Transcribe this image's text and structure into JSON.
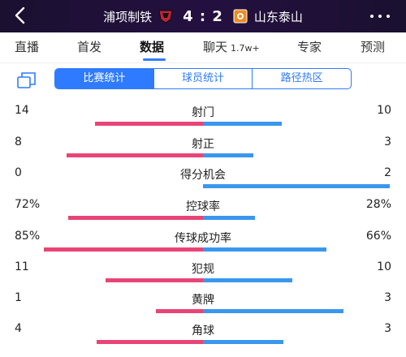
{
  "header": {
    "home_team": "浦项制铁",
    "away_team": "山东泰山",
    "score": "4 : 2"
  },
  "tabs": [
    {
      "label": "直播"
    },
    {
      "label": "首发"
    },
    {
      "label": "数据",
      "active": true
    },
    {
      "label": "聊天",
      "sub": "1.7w+"
    },
    {
      "label": "专家"
    },
    {
      "label": "预测"
    }
  ],
  "segment": [
    {
      "label": "比赛统计",
      "active": true
    },
    {
      "label": "球员统计"
    },
    {
      "label": "路径热区"
    }
  ],
  "colors": {
    "home": "#e84576",
    "away": "#3a97ee",
    "accent": "#2f7bff"
  },
  "stats": [
    {
      "label": "射门",
      "home": "14",
      "away": "10",
      "home_share": 0.58,
      "away_share": 0.42
    },
    {
      "label": "射正",
      "home": "8",
      "away": "3",
      "home_share": 0.73,
      "away_share": 0.27
    },
    {
      "label": "得分机会",
      "home": "0",
      "away": "2",
      "home_share": 0.0,
      "away_share": 1.0
    },
    {
      "label": "控球率",
      "home": "72%",
      "away": "28%",
      "home_share": 0.72,
      "away_share": 0.28
    },
    {
      "label": "传球成功率",
      "home": "85%",
      "away": "66%",
      "home_share": 0.85,
      "away_share": 0.66
    },
    {
      "label": "犯规",
      "home": "11",
      "away": "10",
      "home_share": 0.52,
      "away_share": 0.48
    },
    {
      "label": "黄牌",
      "home": "1",
      "away": "3",
      "home_share": 0.25,
      "away_share": 0.75
    },
    {
      "label": "角球",
      "home": "4",
      "away": "3",
      "home_share": 0.57,
      "away_share": 0.43
    }
  ]
}
